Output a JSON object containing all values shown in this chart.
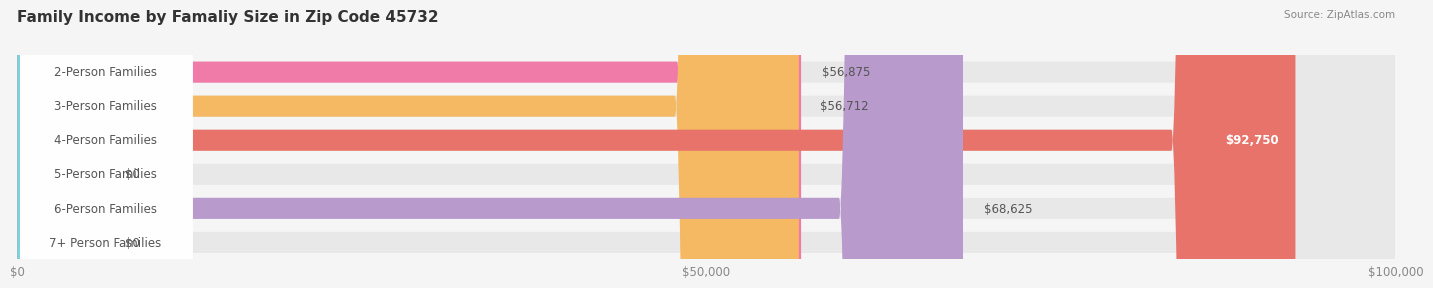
{
  "title": "Family Income by Famaliy Size in Zip Code 45732",
  "source": "Source: ZipAtlas.com",
  "categories": [
    "2-Person Families",
    "3-Person Families",
    "4-Person Families",
    "5-Person Families",
    "6-Person Families",
    "7+ Person Families"
  ],
  "values": [
    56875,
    56712,
    92750,
    0,
    68625,
    0
  ],
  "bar_colors": [
    "#f07aa8",
    "#f5b963",
    "#e8736a",
    "#a8c4e8",
    "#b89acc",
    "#7dd4d8"
  ],
  "value_labels": [
    "$56,875",
    "$56,712",
    "$92,750",
    "$0",
    "$68,625",
    "$0"
  ],
  "xlim": [
    0,
    100000
  ],
  "xticks": [
    0,
    50000,
    100000
  ],
  "xtick_labels": [
    "$0",
    "$50,000",
    "$100,000"
  ],
  "background_color": "#f5f5f5",
  "bar_background": "#e8e8e8",
  "bar_height": 0.62,
  "title_fontsize": 11,
  "label_fontsize": 8.5,
  "value_fontsize": 8.5
}
